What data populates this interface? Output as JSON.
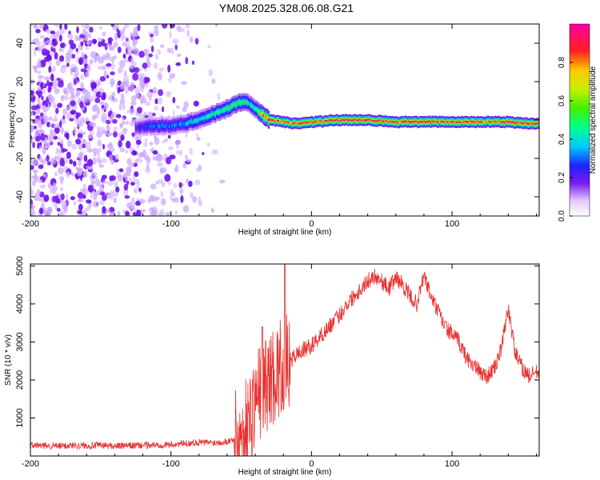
{
  "title": "YM08.2025.328.06.08.G21",
  "top_panel": {
    "ylabel": "Frequency (Hz)",
    "xlabel": "Height of straight line (km)",
    "y_ticks": [
      "40",
      "20",
      "0",
      "-20",
      "-40"
    ],
    "x_ticks": [
      "-200",
      "-100",
      "0",
      "100"
    ],
    "colorbar_label": "Normalized spectral amplitude",
    "colorbar_ticks": [
      "0.0",
      "0.2",
      "0.4",
      "0.6",
      "0.8"
    ]
  },
  "bottom_panel": {
    "ylabel": "SNR (10 * v/v)",
    "xlabel": "Height of straight line (km)",
    "y_ticks": [
      "5000",
      "4000",
      "3000",
      "2000",
      "1000"
    ],
    "x_ticks": [
      "-200",
      "-100",
      "0",
      "100"
    ]
  },
  "chart_data": [
    {
      "type": "heatmap",
      "title": "YM08.2025.328.06.08.G21",
      "xlabel": "Height of straight line (km)",
      "ylabel": "Frequency (Hz)",
      "xlim": [
        -200,
        162
      ],
      "ylim": [
        -50,
        50
      ],
      "colorbar": {
        "label": "Normalized spectral amplitude",
        "range": [
          0,
          1
        ],
        "colormap": "rainbow (violet→red)"
      },
      "ridge": {
        "x": [
          -125,
          -110,
          -100,
          -90,
          -80,
          -70,
          -60,
          -52,
          -45,
          -40,
          -35,
          -30,
          -20,
          -10,
          0,
          20,
          40,
          60,
          80,
          100,
          120,
          140,
          160
        ],
        "frequency": [
          -4,
          -3,
          -3,
          -2,
          0,
          3,
          6,
          9,
          9,
          6,
          3,
          0,
          -1,
          -2,
          -1,
          0,
          0,
          -1,
          -1,
          -1,
          -1,
          -1,
          -2
        ],
        "amplitude": [
          0.2,
          0.3,
          0.3,
          0.35,
          0.4,
          0.45,
          0.5,
          0.5,
          0.45,
          0.4,
          0.8,
          0.9,
          0.85,
          0.9,
          0.88,
          0.95,
          0.92,
          0.9,
          0.9,
          0.88,
          0.85,
          0.95,
          0.9
        ]
      },
      "noise_region": {
        "x_from": -200,
        "x_to": -55,
        "freq_range": [
          -50,
          50
        ],
        "amplitude": [
          0.0,
          0.1
        ]
      }
    },
    {
      "type": "line",
      "xlabel": "Height of straight line (km)",
      "ylabel": "SNR (10 * v/v)",
      "xlim": [
        -200,
        162
      ],
      "ylim": [
        0,
        5050
      ],
      "series": [
        {
          "name": "SNR",
          "color": "#e8302e",
          "x": [
            -200,
            -190,
            -180,
            -170,
            -160,
            -150,
            -140,
            -130,
            -120,
            -110,
            -100,
            -90,
            -80,
            -70,
            -60,
            -55,
            -50,
            -45,
            -40,
            -35,
            -30,
            -25,
            -20,
            -15,
            -10,
            -5,
            0,
            5,
            10,
            15,
            20,
            25,
            30,
            35,
            40,
            45,
            50,
            55,
            60,
            65,
            70,
            75,
            80,
            85,
            90,
            95,
            100,
            105,
            110,
            115,
            120,
            125,
            130,
            135,
            140,
            145,
            150,
            155,
            160
          ],
          "y": [
            280,
            270,
            260,
            280,
            270,
            280,
            260,
            270,
            280,
            290,
            300,
            330,
            360,
            350,
            380,
            450,
            500,
            900,
            1500,
            1800,
            2000,
            2200,
            2400,
            2500,
            2700,
            2800,
            2900,
            3100,
            3300,
            3500,
            3700,
            4000,
            4200,
            4400,
            4600,
            4750,
            4600,
            4400,
            4700,
            4500,
            4200,
            4000,
            4750,
            4200,
            3800,
            3400,
            3200,
            3000,
            2600,
            2400,
            2200,
            2100,
            2300,
            2800,
            3900,
            2700,
            2300,
            2100,
            2200
          ]
        }
      ],
      "spikes": [
        {
          "x": -19,
          "y": 5050
        },
        {
          "x": -35,
          "y": 3400
        }
      ]
    }
  ]
}
